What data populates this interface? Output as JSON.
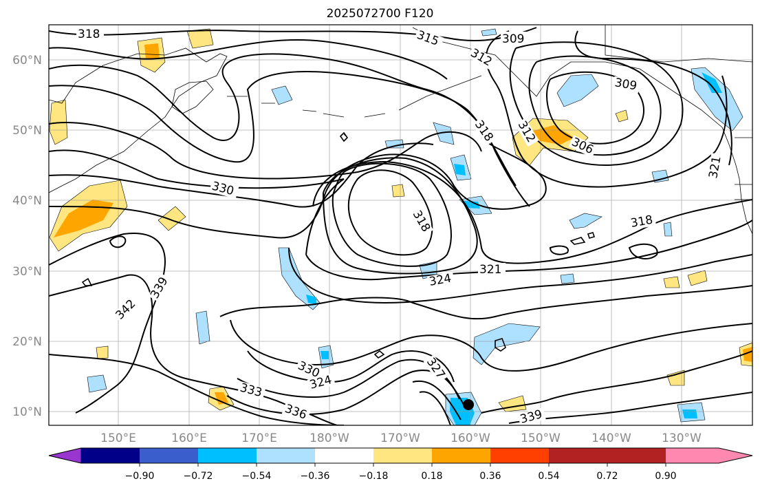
{
  "title": "2025072700 F120",
  "lat_labels": [
    "60°N",
    "50°N",
    "40°N",
    "30°N",
    "20°N",
    "10°N"
  ],
  "lon_labels": [
    "150°E",
    "160°E",
    "170°E",
    "180°W",
    "170°W",
    "160°W",
    "150°W",
    "140°W",
    "130°W"
  ],
  "contour_labels": [
    "318",
    "315",
    "309",
    "312",
    "309",
    "312",
    "306",
    "318",
    "321",
    "330",
    "318",
    "318",
    "321",
    "324",
    "339",
    "342",
    "330",
    "324",
    "327",
    "333",
    "336",
    "339"
  ],
  "colorbar": {
    "ticks": [
      "−0.90",
      "−0.72",
      "−0.54",
      "−0.36",
      "−0.18",
      "0.18",
      "0.36",
      "0.54",
      "0.72",
      "0.90"
    ],
    "colors": [
      "#9a36d0",
      "#000088",
      "#3a5fcd",
      "#00bfff",
      "#aee0ff",
      "#ffffff",
      "#ffe680",
      "#ffa500",
      "#ff4000",
      "#b22222",
      "#ff88b0"
    ]
  },
  "colors": {
    "pos_light": "#ffe680",
    "pos_mid": "#ffa500",
    "neg_light": "#aee0ff",
    "neg_mid": "#00bfff"
  }
}
